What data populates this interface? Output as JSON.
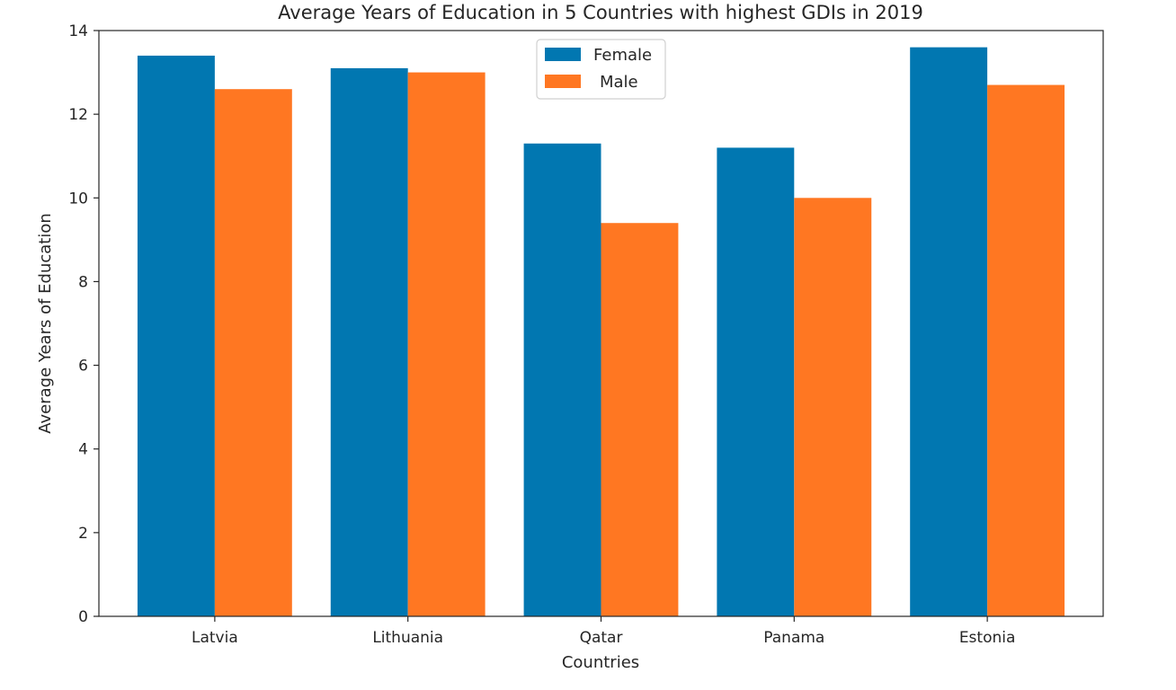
{
  "chart_data": {
    "type": "bar",
    "title": "Average Years of Education in 5 Countries with highest GDIs in 2019",
    "xlabel": "Countries",
    "ylabel": "Average Years of Education",
    "categories": [
      "Latvia",
      "Lithuania",
      "Qatar",
      "Panama",
      "Estonia"
    ],
    "series": [
      {
        "name": "Female",
        "color": "#0177b1",
        "values": [
          13.4,
          13.1,
          11.3,
          11.2,
          13.6
        ]
      },
      {
        "name": "Male",
        "color": "#ff7722",
        "values": [
          12.6,
          13.0,
          9.4,
          10.0,
          12.7
        ]
      }
    ],
    "ylim": [
      0,
      14
    ],
    "yticks": [
      0,
      2,
      4,
      6,
      8,
      10,
      12,
      14
    ],
    "grid": false,
    "legend_position": "top-center"
  }
}
